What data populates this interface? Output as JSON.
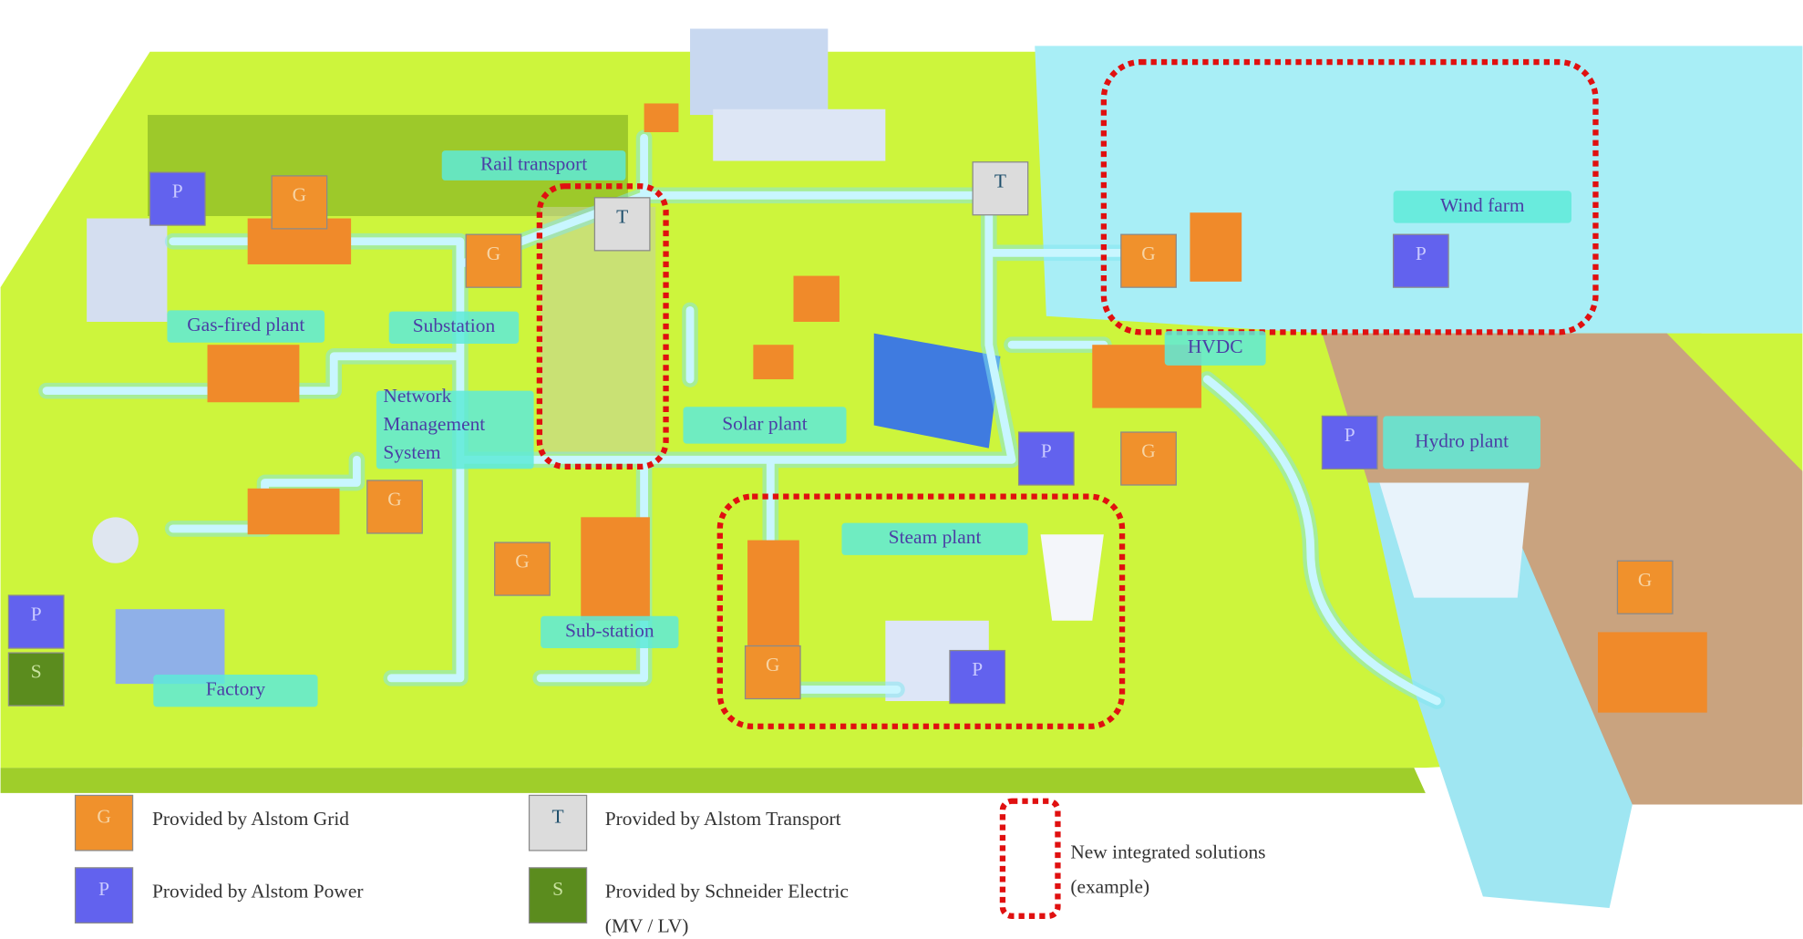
{
  "labels": [
    {
      "lines": [
        "Rail transport"
      ]
    },
    {
      "lines": [
        "Wind farm"
      ]
    },
    {
      "lines": [
        "Gas-fired plant"
      ]
    },
    {
      "lines": [
        "Substation"
      ]
    },
    {
      "lines": [
        "Network",
        "Management",
        "System"
      ]
    },
    {
      "lines": [
        "Solar plant"
      ]
    },
    {
      "lines": [
        "HVDC"
      ]
    },
    {
      "lines": [
        "Hydro plant"
      ]
    },
    {
      "lines": [
        "Steam plant"
      ]
    },
    {
      "lines": [
        "Sub-station"
      ]
    },
    {
      "lines": [
        "Factory"
      ]
    }
  ],
  "badges": [
    "P",
    "G",
    "T",
    "T",
    "G",
    "G",
    "P",
    "P",
    "P",
    "G",
    "G",
    "G",
    "P",
    "S",
    "G",
    "P",
    "G"
  ],
  "legend": [
    {
      "letter": "G",
      "lines": [
        "Provided by Alstom Grid"
      ]
    },
    {
      "letter": "P",
      "lines": [
        "Provided by Alstom Power"
      ]
    },
    {
      "letter": "T",
      "lines": [
        "Provided by Alstom Transport"
      ]
    },
    {
      "letter": "S",
      "lines": [
        "Provided by Schneider Electric",
        "(MV / LV)"
      ]
    },
    {
      "letter": null,
      "lines": [
        "New integrated  solutions",
        "(example)"
      ]
    }
  ]
}
